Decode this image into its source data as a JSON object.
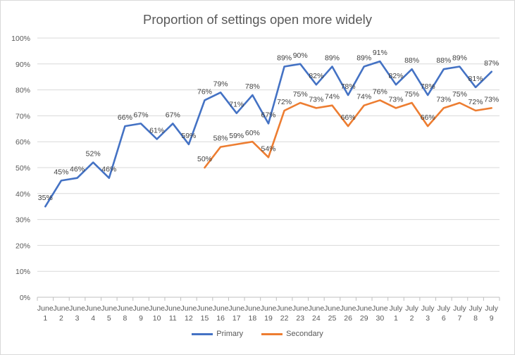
{
  "chart_data": {
    "type": "line",
    "title": "Proportion of settings open more widely",
    "xlabel": "",
    "ylabel": "",
    "ylim": [
      0,
      100
    ],
    "yticks": [
      "0%",
      "10%",
      "20%",
      "30%",
      "40%",
      "50%",
      "60%",
      "70%",
      "80%",
      "90%",
      "100%"
    ],
    "grid": true,
    "legend_position": "bottom",
    "categories": [
      [
        "June",
        "1"
      ],
      [
        "June",
        "2"
      ],
      [
        "June",
        "3"
      ],
      [
        "June",
        "4"
      ],
      [
        "June",
        "5"
      ],
      [
        "June",
        "8"
      ],
      [
        "June",
        "9"
      ],
      [
        "June",
        "10"
      ],
      [
        "June",
        "11"
      ],
      [
        "June",
        "12"
      ],
      [
        "June",
        "15"
      ],
      [
        "June",
        "16"
      ],
      [
        "June",
        "17"
      ],
      [
        "June",
        "18"
      ],
      [
        "June",
        "19"
      ],
      [
        "June",
        "22"
      ],
      [
        "June",
        "23"
      ],
      [
        "June",
        "24"
      ],
      [
        "June",
        "25"
      ],
      [
        "June",
        "26"
      ],
      [
        "June",
        "29"
      ],
      [
        "June",
        "30"
      ],
      [
        "July",
        "1"
      ],
      [
        "July",
        "2"
      ],
      [
        "July",
        "3"
      ],
      [
        "July",
        "6"
      ],
      [
        "July",
        "7"
      ],
      [
        "July",
        "8"
      ],
      [
        "July",
        "9"
      ]
    ],
    "series": [
      {
        "name": "Primary",
        "color": "#4472C4",
        "values": [
          35,
          45,
          46,
          52,
          46,
          66,
          67,
          61,
          67,
          59,
          76,
          79,
          71,
          78,
          67,
          89,
          90,
          82,
          89,
          78,
          89,
          91,
          82,
          88,
          78,
          88,
          89,
          81,
          87
        ],
        "labels": [
          "35%",
          "45%",
          "46%",
          "52%",
          "46%",
          "66%",
          "67%",
          "61%",
          "67%",
          "59%",
          "76%",
          "79%",
          "71%",
          "78%",
          "67%",
          "89%",
          "90%",
          "82%",
          "89%",
          "78%",
          "89%",
          "91%",
          "82%",
          "88%",
          "78%",
          "88%",
          "89%",
          "81%",
          "87%"
        ]
      },
      {
        "name": "Secondary",
        "color": "#ED7D31",
        "values": [
          null,
          null,
          null,
          null,
          null,
          null,
          null,
          null,
          null,
          null,
          50,
          58,
          59,
          60,
          54,
          72,
          75,
          73,
          74,
          66,
          74,
          76,
          73,
          75,
          66,
          73,
          75,
          72,
          73
        ],
        "labels": [
          "",
          "",
          "",
          "",
          "",
          "",
          "",
          "",
          "",
          "",
          "50%",
          "58%",
          "59%",
          "60%",
          "54%",
          "72%",
          "75%",
          "73%",
          "74%",
          "66%",
          "74%",
          "76%",
          "73%",
          "75%",
          "66%",
          "73%",
          "75%",
          "72%",
          "73%"
        ]
      }
    ]
  }
}
